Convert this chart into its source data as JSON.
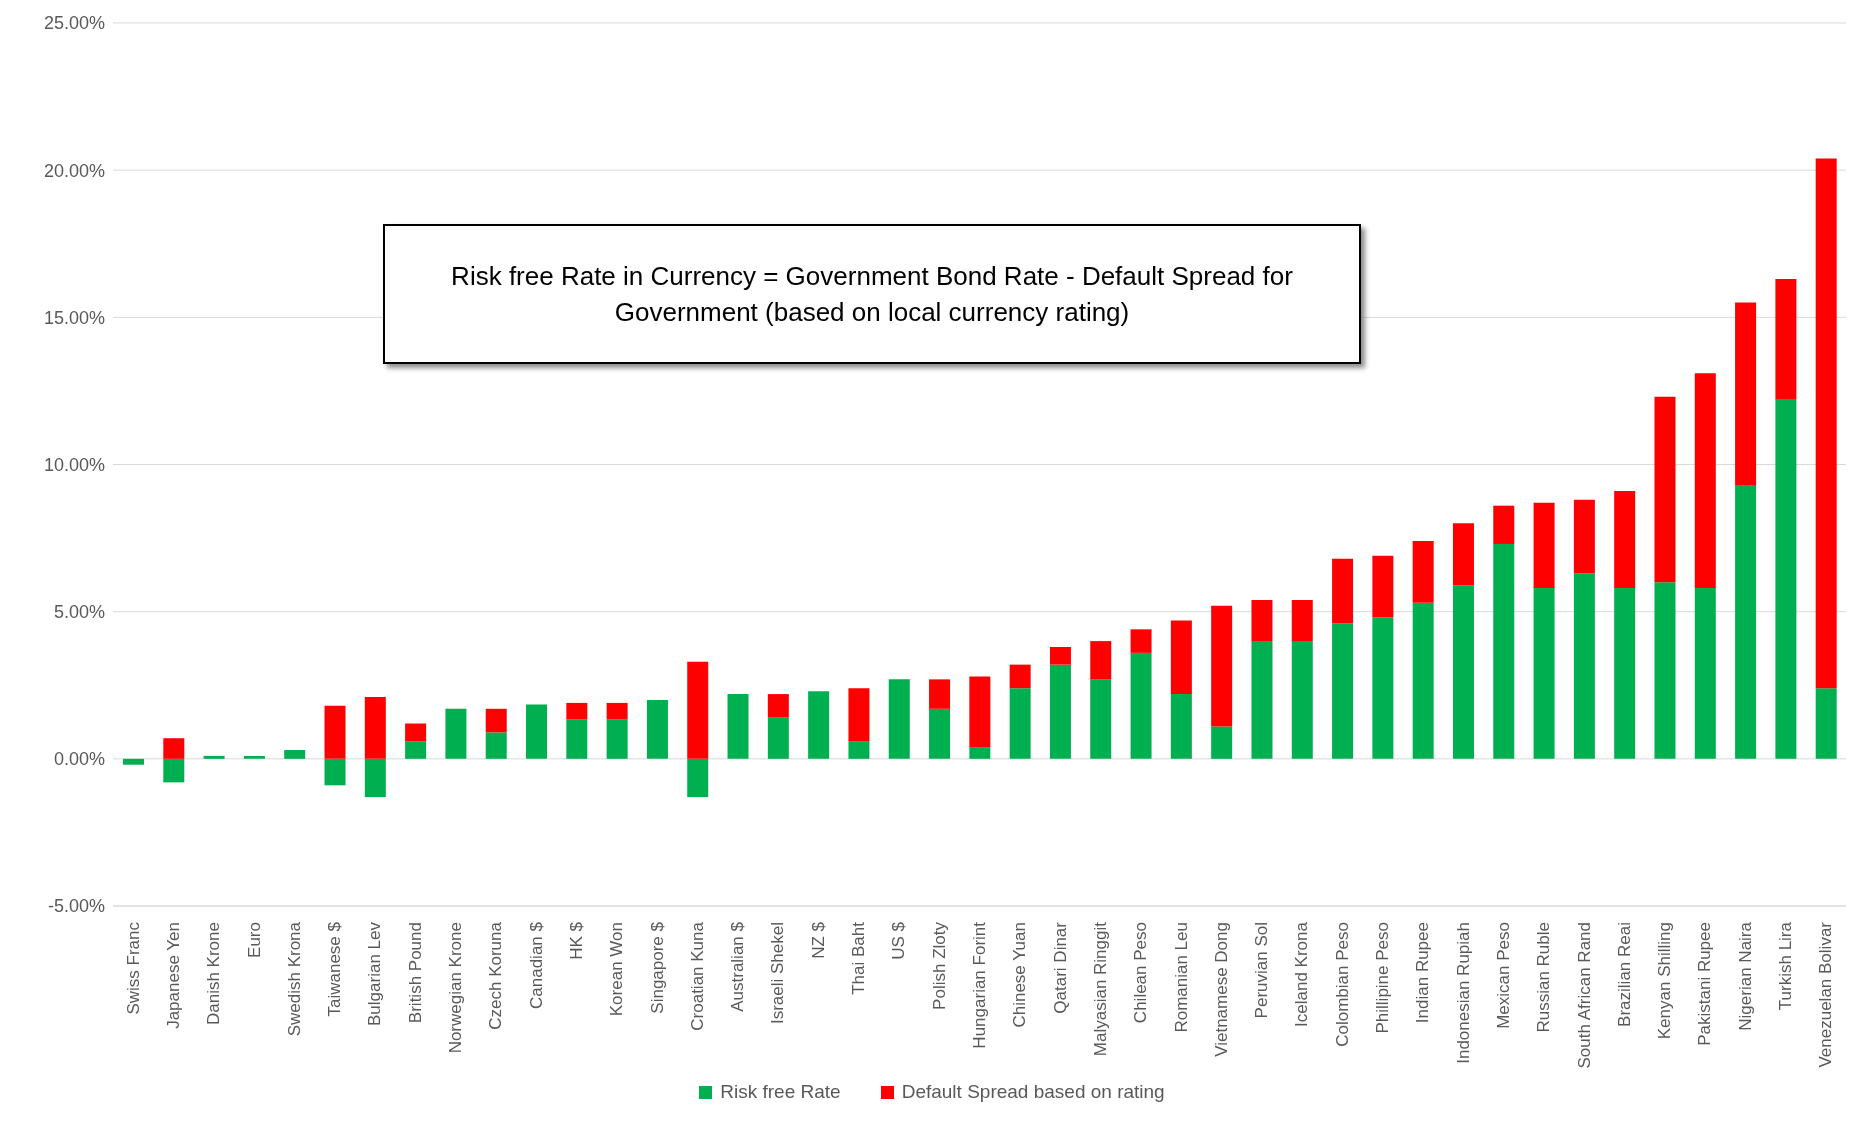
{
  "chart_data": {
    "type": "bar",
    "stacked": true,
    "categories": [
      "Swiss Franc",
      "Japanese Yen",
      "Danish Krone",
      "Euro",
      "Swedish Krona",
      "Taiwanese $",
      "Bulgarian Lev",
      "British Pound",
      "Norwegian Krone",
      "Czech Koruna",
      "Canadian $",
      "HK $",
      "Korean Won",
      "Singapore $",
      "Croatian Kuna",
      "Australian $",
      "Israeli Shekel",
      "NZ $",
      "Thai Baht",
      "US $",
      "Polish Zloty",
      "Hungarian Forint",
      "Chinese Yuan",
      "Qatari Dinar",
      "Malyasian Ringgit",
      "Chilean Peso",
      "Romanian Leu",
      "Vietnamese Dong",
      "Peruvian Sol",
      "Iceland Krona",
      "Colombian Peso",
      "Phillipine Peso",
      "Indian Rupee",
      "Indonesian Rupiah",
      "Mexican Peso",
      "Russian Ruble",
      "South African Rand",
      "Brazilian Reai",
      "Kenyan Shilling",
      "Pakistani Rupee",
      "Nigerian Naira",
      "Turkish Lira",
      "Venezuelan Bolivar"
    ],
    "series": [
      {
        "name": "Risk free Rate",
        "color": "#00b050",
        "values": [
          -0.2,
          -0.8,
          0.1,
          0.1,
          0.3,
          -0.9,
          -1.3,
          0.6,
          1.7,
          0.9,
          1.85,
          1.35,
          1.35,
          2.0,
          -1.3,
          2.2,
          1.4,
          2.3,
          0.6,
          2.7,
          1.7,
          0.4,
          2.4,
          3.2,
          2.7,
          3.6,
          2.2,
          1.1,
          4.0,
          4.0,
          4.6,
          4.8,
          5.3,
          5.9,
          7.3,
          5.8,
          6.3,
          5.8,
          6.0,
          5.8,
          9.3,
          12.2,
          2.4
        ]
      },
      {
        "name": "Default Spread based on rating",
        "color": "#ff0000",
        "values": [
          0,
          0.7,
          0,
          0,
          0,
          1.8,
          2.1,
          0.6,
          0,
          0.8,
          0,
          0.55,
          0.55,
          0,
          3.3,
          0,
          0.8,
          0,
          1.8,
          0,
          1.0,
          2.4,
          0.8,
          0.6,
          1.3,
          0.8,
          2.5,
          4.1,
          1.4,
          1.4,
          2.2,
          2.1,
          2.1,
          2.1,
          1.3,
          2.9,
          2.5,
          3.3,
          6.3,
          7.3,
          6.2,
          4.1,
          18.0
        ]
      }
    ],
    "ylim": [
      -5,
      25
    ],
    "yticks": [
      {
        "value": -5,
        "label": "-5.00%"
      },
      {
        "value": 0,
        "label": "0.00%"
      },
      {
        "value": 5,
        "label": "5.00%"
      },
      {
        "value": 10,
        "label": "10.00%"
      },
      {
        "value": 15,
        "label": "15.00%"
      },
      {
        "value": 20,
        "label": "20.00%"
      },
      {
        "value": 25,
        "label": "25.00%"
      }
    ],
    "grid": "y",
    "legend": "bottom",
    "annotations": [
      "Risk free Rate in Currency = Government Bond Rate - Default Spread for Government (based on local currency rating)"
    ]
  }
}
